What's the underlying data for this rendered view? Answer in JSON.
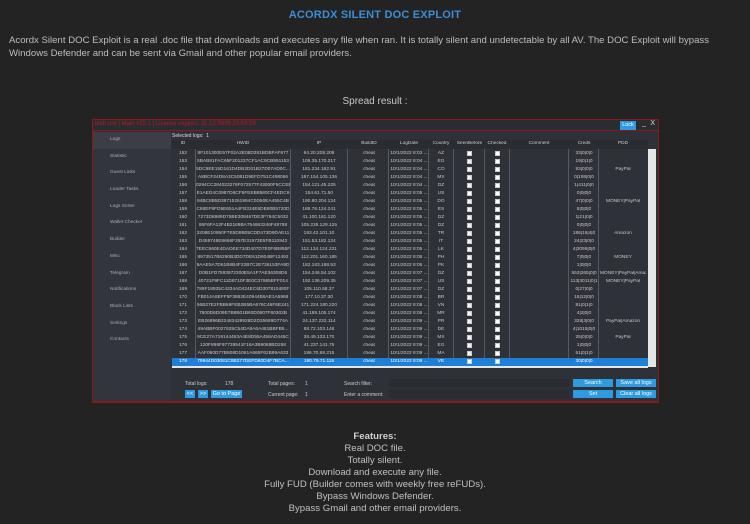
{
  "title": "ACORDX SILENT DOC EXPLOIT",
  "intro": "Acordx Silent DOC Exploit is a real .doc file that downloads and executes any file when ran. It is totally silent and undetectable by all AV. The DOC Exploit will bypass Windows Defender and can be sent via Gmail and other popular email providers.",
  "spread": "Spread result :",
  "window": {
    "title": "tech.ore | Main v25.1 | License expires: 31.12.9999 23:59:59",
    "lock": "Lock",
    "minimize": "_",
    "close": "X"
  },
  "sidebar": [
    "Logs",
    "Statistic",
    "Guest Links",
    "Loader Tasks",
    "Logs Sorter",
    "Wallet Checker",
    "Builder",
    "Misc",
    "Telegram",
    "Notifications",
    "Black Lists",
    "Settings",
    "Contacts"
  ],
  "selected_logs_label": "Selected logs:",
  "selected_logs": "1",
  "columns": [
    "ID",
    "HWID",
    "IP",
    "BuildID",
    "LogDate",
    "Country",
    "SeenBefore",
    "Checked",
    "Comment",
    "Creds",
    "PDD"
  ],
  "rows": [
    [
      "152",
      "8F101300E57F02A2E08D381BDBFAF677",
      "94.20.208.208",
      "cheat",
      "10/1/2022 8:03 ...",
      "AZ",
      false,
      false,
      "",
      "33|0|0|0",
      ""
    ],
    [
      "153",
      "5BAB91FAC65F201237CF1AC9CB951153",
      "105.35.170.217",
      "cheat",
      "10/1/2022 8:04 ...",
      "EG",
      true,
      false,
      "",
      "19|0|1|0",
      ""
    ],
    [
      "154",
      "5DC9EE15D161D4DB2D01B27D07AD0C...",
      "181.234.182.91",
      "cheat",
      "10/1/2022 8:04 ...",
      "CO",
      true,
      false,
      "",
      "93|0|0|0",
      "PayPal"
    ],
    [
      "155",
      "A8BCF24D8A3C5081D9EFD751C498066",
      "187.154.105.136",
      "cheat",
      "10/1/2022 8:04 ...",
      "MX",
      true,
      false,
      "",
      "0|198|0|0",
      ""
    ],
    [
      "156",
      "0294CC264023278F072577F43000F5CCEE",
      "154.121.45.225",
      "cheat",
      "10/1/2022 8:04 ...",
      "DZ",
      true,
      false,
      "",
      "1|411|0|0",
      ""
    ],
    [
      "157",
      "E1AED4C0987D6CF5FEEB8580CF4EDC9",
      "154.61.71.50",
      "cheat",
      "10/1/2022 8:05 ...",
      "US",
      false,
      false,
      "",
      "0|0|0|0",
      ""
    ],
    [
      "158",
      "94BC8B5D39715261994C0D50EA455C4B",
      "190.80.204.124",
      "cheat",
      "10/1/2022 8:05 ...",
      "DO",
      true,
      false,
      "",
      "47|0|0|0",
      "MONEY|PayPal"
    ],
    [
      "159",
      "C86EF9FD5E651A4FB324E6DB80B5720D",
      "188.76.124.241",
      "cheat",
      "10/1/2022 8:05 ...",
      "ES",
      true,
      false,
      "",
      "8|0|0|0",
      ""
    ],
    [
      "160",
      "7273D8989D75BE308467DE3F784C5032",
      "41.100.161.120",
      "cheat",
      "10/1/2022 8:05 ...",
      "DZ",
      true,
      false,
      "",
      "1|21|0|0",
      ""
    ],
    [
      "161",
      "95F6FA12F4B2169BA754663246F48788",
      "105.235.129.125",
      "cheat",
      "10/1/2022 8:05 ...",
      "DZ",
      true,
      false,
      "",
      "0|0|0|0",
      ""
    ],
    [
      "162",
      "3208E10950F7E5D9B05CDD473D9DAE11",
      "193.42.101.10",
      "cheat",
      "10/1/2022 8:05 ...",
      "TR",
      true,
      false,
      "",
      "186|16|4|0",
      "Amazon"
    ],
    [
      "163",
      "D459746E8666F397E31973E5FB110943",
      "151.53.182.124",
      "cheat",
      "10/1/2022 8:05 ...",
      "IT",
      true,
      false,
      "",
      "24|23|0|0",
      ""
    ],
    [
      "164",
      "7EEC560E4DADEE734D407D7E0F6B855F",
      "112.134.124.231",
      "cheat",
      "10/1/2022 8:05 ...",
      "LK",
      true,
      false,
      "",
      "4|3096|0|0",
      ""
    ],
    [
      "165",
      "8973917B6290B3DD7DE61D604BF12492",
      "112.201.160.185",
      "cheat",
      "10/1/2022 8:06 ...",
      "PH",
      true,
      false,
      "",
      "7|0|0|0",
      "MONEY"
    ],
    [
      "166",
      "9AAE5A7D61B8B4F22B7C2E736153FA9D",
      "182.183.188.53",
      "cheat",
      "10/1/2022 8:06 ...",
      "PK",
      true,
      false,
      "",
      "1|0|0|0",
      ""
    ],
    [
      "167",
      "D0B1FD7593972300E5A1F7AE36308D6",
      "154.246.54.102",
      "cheat",
      "10/1/2022 8:07 ...",
      "DZ",
      true,
      false,
      "",
      "553|265|0|0",
      "MONEY|PayPal|Amazon"
    ],
    [
      "168",
      "40721F9FC11D8710F3E0C37865EFF014",
      "192.136.209.35",
      "cheat",
      "10/1/2022 8:07 ...",
      "US",
      true,
      false,
      "",
      "113|3011|0|1",
      "MONEY|PayPal"
    ],
    [
      "169",
      "789F18935C4334AD424EC6D307810480F",
      "105.110.58.37",
      "cheat",
      "10/1/2022 8:07 ...",
      "DZ",
      true,
      false,
      "",
      "0|27|0|0",
      ""
    ],
    [
      "170",
      "FB014A8EFF5F3862E40944B6AE1A5968",
      "177.10.37.30",
      "cheat",
      "10/1/2022 8:08 ...",
      "BR",
      true,
      false,
      "",
      "16|12|0|0",
      ""
    ],
    [
      "171",
      "56B27E2FBB69FEB2B5BA676C46F6E241",
      "171.224.180.220",
      "cheat",
      "10/1/2022 8:08 ...",
      "VN",
      true,
      false,
      "",
      "81|0|1|0",
      ""
    ],
    [
      "172",
      "7800D6D09E7B8B01B60D0807F60302B",
      "41.188.105.174",
      "cheat",
      "10/1/2022 8:08 ...",
      "MR",
      true,
      false,
      "",
      "4|2|0|0",
      ""
    ],
    [
      "173",
      "EB26896B22483429928D2D35669D774A",
      "24.137.232.114",
      "cheat",
      "10/1/2022 8:09 ...",
      "PR",
      true,
      false,
      "",
      "328|3|0|0",
      "PayPal|Amazon"
    ],
    [
      "174",
      "49ABBF0027625C54DA9A6A481BBFB5...",
      "88.72.103.146",
      "cheat",
      "10/1/2022 8:09 ...",
      "DE",
      true,
      false,
      "",
      "4|1015|0|0",
      ""
    ],
    [
      "175",
      "9CE27A719144463A4E8D55A458AD445C",
      "38.49.133.170",
      "cheat",
      "10/1/2022 8:09 ...",
      "MX",
      true,
      false,
      "",
      "25|0|0|0",
      "PayPal"
    ],
    [
      "176",
      "120F898F97739541F16A3B9068BD258",
      "41.237.141.75",
      "cheat",
      "10/1/2022 8:09 ...",
      "EG",
      true,
      false,
      "",
      "1|0|0|0",
      ""
    ],
    [
      "177",
      "AAF060D77B808D1061A665F62B99A633",
      "196.70.88.215",
      "cheat",
      "10/1/2022 8:09 ...",
      "MA",
      true,
      false,
      "",
      "51|0|1|0",
      ""
    ],
    [
      "178",
      "79944D03081C8B277DEFD60D4F7BCA...",
      "190.79.71.115",
      "cheat",
      "10/1/2022 8:09 ...",
      "VE",
      true,
      false,
      "",
      "30|0|0|0",
      ""
    ]
  ],
  "selected_row": "178",
  "footer": {
    "total_logs_label": "Total logs:",
    "total_logs": "178",
    "prev": "<<",
    "next": ">>",
    "goto": "Go to Page",
    "total_pages_label": "Total pages:",
    "total_pages": "1",
    "current_page_label": "Current page:",
    "current_page": "1",
    "search_label": "Search filter:",
    "comment_label": "Enter a comment:",
    "search": "Search",
    "set": "Set",
    "save_all": "Save all logs",
    "clear_all": "Clear all logs"
  },
  "features": {
    "heading": "Features:",
    "items": [
      "Real DOC file.",
      "Totally silent.",
      "Download and execute any file.",
      "Fully FUD (Builder comes with weekly free reFUDs).",
      "Bypass Windows Defender.",
      "Bypass Gmail and other email providers."
    ]
  },
  "colors": {
    "accent": "#2e9be0",
    "title": "#3a8fd6",
    "window_border": "#8a1a1a",
    "selection": "#1e7fd6"
  }
}
